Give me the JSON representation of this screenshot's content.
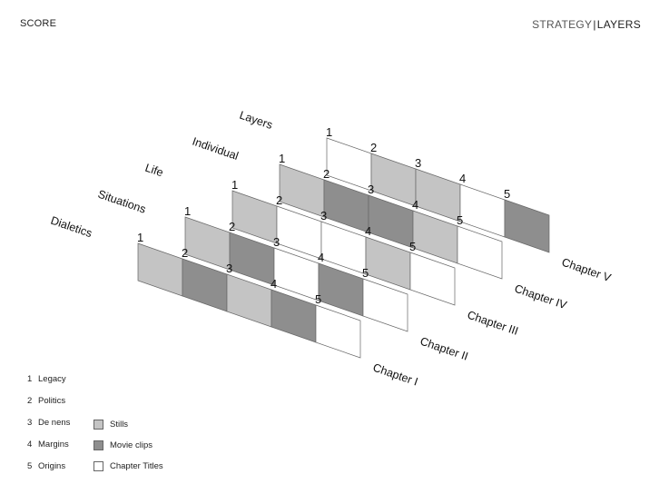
{
  "header": {
    "left_title": "SCORE",
    "right_title_part1": "STRATEGY",
    "right_separator": "|",
    "right_title_part2": "LAYERS"
  },
  "palette": {
    "stills": "#c4c4c4",
    "movie_clips": "#8e8e8e",
    "chapter_titles": "#ffffff"
  },
  "lanes": [
    {
      "label": "Dialetics",
      "chapter": "Chapter I",
      "cells": [
        "stills",
        "movie_clips",
        "stills",
        "movie_clips",
        "chapter_titles"
      ]
    },
    {
      "label": "Situations",
      "chapter": "Chapter II",
      "cells": [
        "stills",
        "movie_clips",
        "chapter_titles",
        "movie_clips",
        "chapter_titles"
      ]
    },
    {
      "label": "Life",
      "chapter": "Chapter III",
      "cells": [
        "stills",
        "chapter_titles",
        "chapter_titles",
        "stills",
        "chapter_titles"
      ]
    },
    {
      "label": "Individual",
      "chapter": "Chapter IV",
      "cells": [
        "stills",
        "movie_clips",
        "movie_clips",
        "stills",
        "chapter_titles"
      ]
    },
    {
      "label": "Layers",
      "chapter": "Chapter V",
      "cells": [
        "chapter_titles",
        "stills",
        "stills",
        "chapter_titles",
        "movie_clips"
      ]
    }
  ],
  "cell_numbers": [
    "1",
    "2",
    "3",
    "4",
    "5"
  ],
  "legend": {
    "numbered": [
      {
        "number": "1",
        "label": "Legacy"
      },
      {
        "number": "2",
        "label": "Politics"
      },
      {
        "number": "3",
        "label": "De nens"
      },
      {
        "number": "4",
        "label": "Margins"
      },
      {
        "number": "5",
        "label": "Origins"
      }
    ],
    "swatches": [
      {
        "key": "stills",
        "label": "Stills"
      },
      {
        "key": "movie_clips",
        "label": "Movie clips"
      },
      {
        "key": "chapter_titles",
        "label": "Chapter Titles"
      }
    ]
  }
}
